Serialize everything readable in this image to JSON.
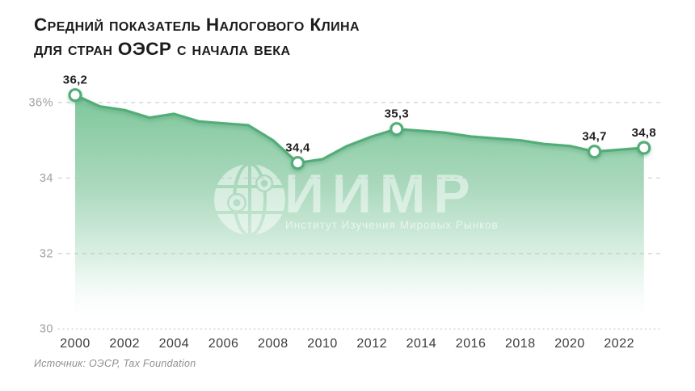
{
  "title": {
    "line1": "Средний показатель Налогового Клина",
    "line2": "для стран ОЭСР с начала века"
  },
  "source": "Источник: ОЭСР, Tax Foundation",
  "watermark": {
    "icon": "globe-network-icon",
    "name": "ИИМР",
    "subtitle": "Институт Изучения Мировых Рынков"
  },
  "chart_data": {
    "type": "area",
    "title": "Средний показатель Налогового Клина для стран ОЭСР с начала века",
    "xlabel": "",
    "ylabel": "",
    "x": [
      2000,
      2001,
      2002,
      2003,
      2004,
      2005,
      2006,
      2007,
      2008,
      2009,
      2010,
      2011,
      2012,
      2013,
      2014,
      2015,
      2016,
      2017,
      2018,
      2019,
      2020,
      2021,
      2022,
      2023
    ],
    "values": [
      36.2,
      35.9,
      35.8,
      35.6,
      35.7,
      35.5,
      35.45,
      35.4,
      35.0,
      34.4,
      34.5,
      34.85,
      35.1,
      35.3,
      35.25,
      35.2,
      35.1,
      35.05,
      35.0,
      34.9,
      34.85,
      34.7,
      34.75,
      34.8
    ],
    "labeled_points": [
      {
        "year": 2000,
        "value": 36.2,
        "label": "36,2"
      },
      {
        "year": 2009,
        "value": 34.4,
        "label": "34,4"
      },
      {
        "year": 2013,
        "value": 35.3,
        "label": "35,3"
      },
      {
        "year": 2021,
        "value": 34.7,
        "label": "34,7"
      },
      {
        "year": 2023,
        "value": 34.8,
        "label": "34,8"
      }
    ],
    "y_ticks": [
      {
        "value": 36,
        "label": "36%",
        "style": "dashed"
      },
      {
        "value": 34,
        "label": "34",
        "style": "dashed"
      },
      {
        "value": 32,
        "label": "32",
        "style": "dashed"
      },
      {
        "value": 30,
        "label": "30",
        "style": "dotted"
      }
    ],
    "x_ticks": [
      2000,
      2002,
      2004,
      2006,
      2008,
      2010,
      2012,
      2014,
      2016,
      2018,
      2020,
      2022
    ],
    "ylim": [
      30,
      36.6
    ],
    "xlim": [
      2000,
      2023
    ],
    "grid": "horizontal-dashed",
    "legend": "none",
    "colors": {
      "line": "#52ad78",
      "marker_fill": "#ffffff",
      "grid": "#c4c4c4",
      "point_label": "#1f1f1f",
      "x_tick": "#3c3c3c",
      "y_tick": "#9e9e9e",
      "area_stops": [
        {
          "offset": 0,
          "color": "#7ec79b",
          "opacity": 1
        },
        {
          "offset": 0.4,
          "color": "#abd9bd",
          "opacity": 1
        },
        {
          "offset": 0.78,
          "color": "#e9f6ef",
          "opacity": 1
        },
        {
          "offset": 1,
          "color": "#ffffff",
          "opacity": 0
        }
      ]
    }
  }
}
